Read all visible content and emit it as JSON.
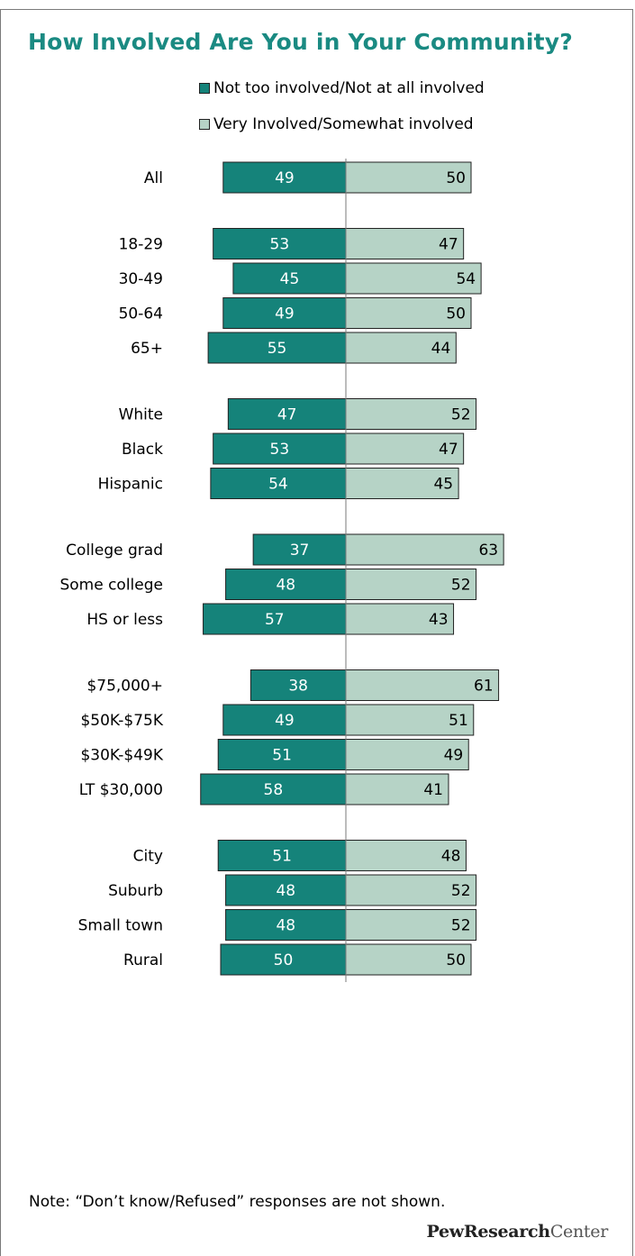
{
  "colors": {
    "title": "#1a8a82",
    "not_involved": "#15837a",
    "involved": "#b6d3c6",
    "bar_stroke": "#222222",
    "divider": "#7a7a7a",
    "label_dark": "#ffffff",
    "label_light": "#000000"
  },
  "chart_data": {
    "type": "bar",
    "orientation": "horizontal-diverging",
    "title": "How Involved Are You in Your Community?",
    "legend": {
      "placement": "top-center",
      "entries": [
        {
          "name": "Not too involved/Not at all involved",
          "color": "#15837a"
        },
        {
          "name": "Very Involved/Somewhat involved",
          "color": "#b6d3c6"
        }
      ]
    },
    "groups": [
      {
        "categories": [
          "All"
        ]
      },
      {
        "categories": [
          "18-29",
          "30-49",
          "50-64",
          "65+"
        ]
      },
      {
        "categories": [
          "White",
          "Black",
          "Hispanic"
        ]
      },
      {
        "categories": [
          "College grad",
          "Some college",
          "HS or less"
        ]
      },
      {
        "categories": [
          "$75,000+",
          "$50K-$75K",
          "$30K-$49K",
          "LT $30,000"
        ]
      },
      {
        "categories": [
          "City",
          "Suburb",
          "Small town",
          "Rural"
        ]
      }
    ],
    "categories": [
      "All",
      "18-29",
      "30-49",
      "50-64",
      "65+",
      "White",
      "Black",
      "Hispanic",
      "College grad",
      "Some college",
      "HS or less",
      "$75,000+",
      "$50K-$75K",
      "$30K-$49K",
      "LT $30,000",
      "City",
      "Suburb",
      "Small town",
      "Rural"
    ],
    "series": [
      {
        "name": "Not too involved/Not at all involved",
        "values": [
          49,
          53,
          45,
          49,
          55,
          47,
          53,
          54,
          37,
          48,
          57,
          38,
          49,
          51,
          58,
          51,
          48,
          48,
          50
        ]
      },
      {
        "name": "Very Involved/Somewhat involved",
        "values": [
          50,
          47,
          54,
          50,
          44,
          52,
          47,
          45,
          63,
          52,
          43,
          61,
          51,
          49,
          41,
          48,
          52,
          52,
          50
        ]
      }
    ],
    "grid": false
  },
  "note": "Note: “Don’t know/Refused” responses are not shown.",
  "brand": {
    "part1": "PewResearch",
    "part2": "Center"
  }
}
